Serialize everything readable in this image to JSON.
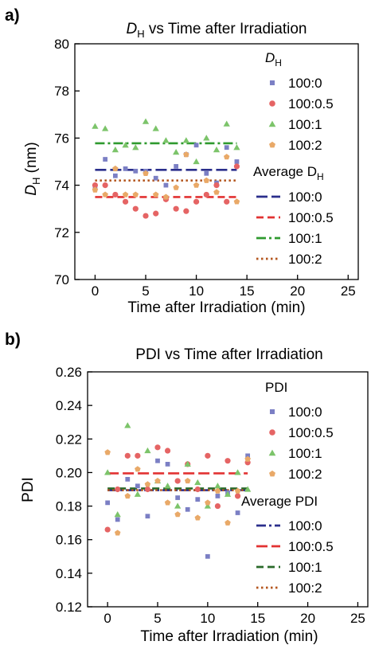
{
  "chart_data": [
    {
      "panel_label": "a)",
      "type": "scatter",
      "title_main": "D",
      "title_sub": "H",
      "title_rest": " vs Time after Irradiation",
      "xlabel": "Time after Irradiation (min)",
      "ylabel_main": "D",
      "ylabel_sub": "H",
      "ylabel_rest": " (nm)",
      "xlim": [
        -2,
        26
      ],
      "ylim": [
        70,
        80
      ],
      "xticks": [
        0,
        5,
        10,
        15,
        20,
        25
      ],
      "yticks": [
        70,
        72,
        74,
        76,
        78,
        80
      ],
      "grid": false,
      "legend_placement": "right",
      "legend_title1_main": "D",
      "legend_title1_sub": "H",
      "legend_title2_main": "Average D",
      "legend_title2_sub": "H",
      "series": [
        {
          "name": "100:0",
          "color": "#7b7fc4",
          "marker": "square",
          "x": [
            0,
            1,
            2,
            3,
            4,
            5,
            6,
            7,
            8,
            9,
            10,
            11,
            12,
            13,
            14
          ],
          "y": [
            73.9,
            75.1,
            74.4,
            74.7,
            74.6,
            74.6,
            74.3,
            74.0,
            74.8,
            75.3,
            75.7,
            74.5,
            74.1,
            75.6,
            75.0
          ]
        },
        {
          "name": "100:0.5",
          "color": "#e56464",
          "marker": "circle",
          "x": [
            0,
            1,
            2,
            3,
            4,
            5,
            6,
            7,
            8,
            9,
            10,
            11,
            12,
            13,
            14
          ],
          "y": [
            74.0,
            74.0,
            73.6,
            73.3,
            73.0,
            72.7,
            72.8,
            73.4,
            73.0,
            72.9,
            73.3,
            73.6,
            74.0,
            73.3,
            74.8
          ]
        },
        {
          "name": "100:1",
          "color": "#7cc46a",
          "marker": "triangle",
          "x": [
            0,
            1,
            2,
            3,
            4,
            5,
            6,
            7,
            8,
            9,
            10,
            11,
            12,
            13,
            14
          ],
          "y": [
            76.5,
            76.4,
            75.5,
            75.7,
            75.6,
            76.7,
            76.4,
            75.9,
            75.4,
            75.9,
            75.0,
            76.0,
            75.5,
            76.6,
            75.6
          ]
        },
        {
          "name": "100:2",
          "color": "#e9a968",
          "marker": "pentagon",
          "x": [
            0,
            1,
            2,
            3,
            4,
            5,
            6,
            7,
            8,
            9,
            10,
            11,
            12,
            13,
            14
          ],
          "y": [
            73.8,
            73.6,
            74.7,
            73.6,
            73.6,
            74.5,
            73.6,
            73.5,
            73.9,
            75.3,
            74.0,
            74.2,
            73.7,
            75.2,
            73.3
          ]
        }
      ],
      "averages": [
        {
          "name": "100:0",
          "color": "#2b2f8c",
          "dash": "long",
          "y": 74.65
        },
        {
          "name": "100:0.5",
          "color": "#e23232",
          "dash": "dash",
          "y": 73.5
        },
        {
          "name": "100:1",
          "color": "#2e9a2e",
          "dash": "dashdot",
          "y": 75.78
        },
        {
          "name": "100:2",
          "color": "#b4561e",
          "dash": "dot",
          "y": 74.2
        }
      ]
    },
    {
      "panel_label": "b)",
      "type": "scatter",
      "title": "PDI vs Time after Irradiation",
      "xlabel": "Time after Irradiation (min)",
      "ylabel": "PDI",
      "xlim": [
        -2,
        26
      ],
      "ylim": [
        0.12,
        0.26
      ],
      "xticks": [
        0,
        5,
        10,
        15,
        20,
        25
      ],
      "yticks": [
        0.12,
        0.14,
        0.16,
        0.18,
        0.2,
        0.22,
        0.24,
        0.26
      ],
      "grid": false,
      "legend_placement": "right",
      "legend_title1": "PDI",
      "legend_title2": "Average PDI",
      "series": [
        {
          "name": "100:0",
          "color": "#7b7fc4",
          "marker": "square",
          "x": [
            0,
            1,
            2,
            3,
            4,
            5,
            6,
            7,
            8,
            9,
            10,
            11,
            12,
            13,
            14
          ],
          "y": [
            0.182,
            0.172,
            0.196,
            0.192,
            0.174,
            0.207,
            0.205,
            0.185,
            0.178,
            0.184,
            0.15,
            0.186,
            0.188,
            0.176,
            0.21
          ]
        },
        {
          "name": "100:0.5",
          "color": "#e56464",
          "marker": "circle",
          "x": [
            0,
            1,
            2,
            3,
            4,
            5,
            6,
            7,
            8,
            9,
            10,
            11,
            12,
            13,
            14
          ],
          "y": [
            0.166,
            0.19,
            0.21,
            0.21,
            0.19,
            0.215,
            0.213,
            0.195,
            0.205,
            0.19,
            0.21,
            0.18,
            0.207,
            0.186,
            0.206
          ]
        },
        {
          "name": "100:1",
          "color": "#7cc46a",
          "marker": "triangle",
          "x": [
            0,
            1,
            2,
            3,
            4,
            5,
            6,
            7,
            8,
            9,
            10,
            11,
            12,
            13,
            14
          ],
          "y": [
            0.2,
            0.175,
            0.228,
            0.187,
            0.213,
            0.195,
            0.192,
            0.18,
            0.205,
            0.194,
            0.18,
            0.192,
            0.187,
            0.2,
            0.19
          ]
        },
        {
          "name": "100:2",
          "color": "#e9a968",
          "marker": "pentagon",
          "x": [
            0,
            1,
            2,
            3,
            4,
            5,
            6,
            7,
            8,
            9,
            10,
            11,
            12,
            13,
            14
          ],
          "y": [
            0.212,
            0.164,
            0.186,
            0.202,
            0.193,
            0.195,
            0.182,
            0.175,
            0.195,
            0.173,
            0.182,
            0.189,
            0.17,
            0.189,
            0.208
          ]
        }
      ],
      "averages": [
        {
          "name": "100:0",
          "color": "#2b2f8c",
          "dash": "dashdot",
          "y": 0.1895
        },
        {
          "name": "100:0.5",
          "color": "#e23232",
          "dash": "long",
          "y": 0.1995
        },
        {
          "name": "100:1",
          "color": "#2a6a2a",
          "dash": "dash",
          "y": 0.1905
        },
        {
          "name": "100:2",
          "color": "#b4561e",
          "dash": "dot",
          "y": 0.1895
        }
      ]
    }
  ]
}
